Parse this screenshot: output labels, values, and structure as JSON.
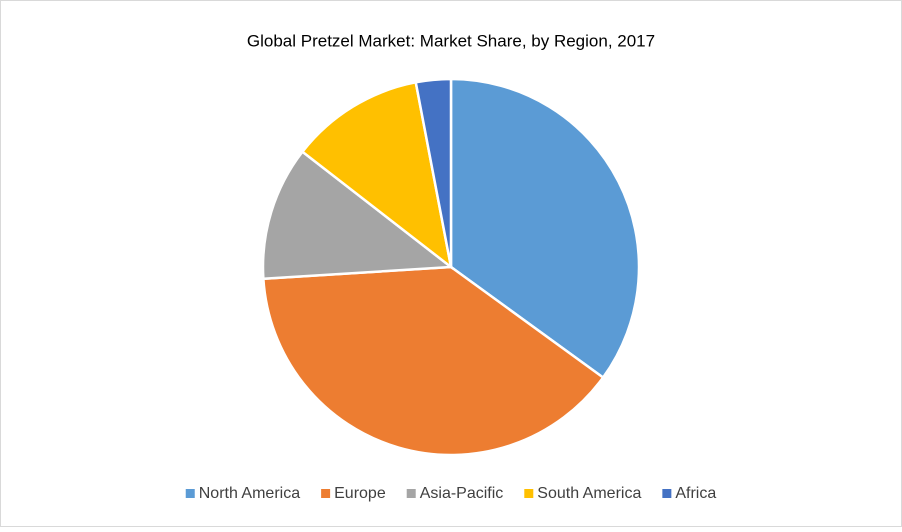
{
  "chart_data": {
    "type": "pie",
    "title": "Global Pretzel Market: Market Share, by Region, 2017",
    "categories": [
      "North America",
      "Europe",
      "Asia-Pacific",
      "South America",
      "Africa"
    ],
    "values": [
      35,
      39,
      11.5,
      11.5,
      3
    ],
    "colors": [
      "#5b9bd5",
      "#ed7d31",
      "#a5a5a5",
      "#ffc000",
      "#4472c4"
    ],
    "legend": "bottom"
  }
}
